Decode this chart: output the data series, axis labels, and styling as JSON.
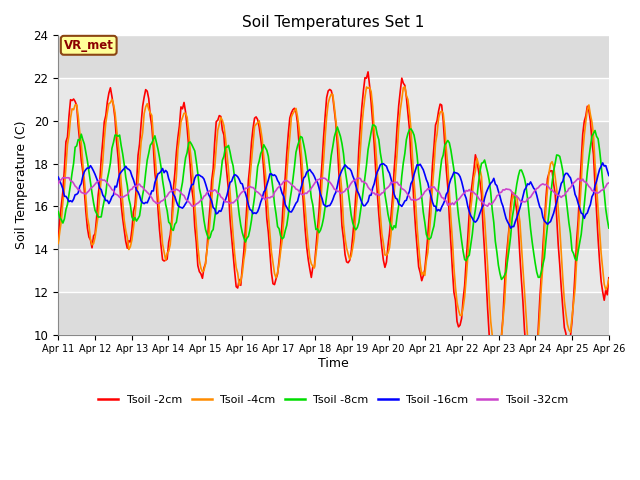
{
  "title": "Soil Temperatures Set 1",
  "xlabel": "Time",
  "ylabel": "Soil Temperature (C)",
  "ylim": [
    10,
    24
  ],
  "yticks": [
    10,
    12,
    14,
    16,
    18,
    20,
    22,
    24
  ],
  "xlim": [
    0,
    15
  ],
  "fig_bg_color": "#ffffff",
  "plot_bg_color": "#e8e8e8",
  "grid_color": "#ffffff",
  "annotation_text": "VR_met",
  "annotation_box_color": "#ffff99",
  "annotation_border_color": "#8b4513",
  "x_tick_labels": [
    "Apr 11",
    "Apr 12",
    "Apr 13",
    "Apr 14",
    "Apr 15",
    "Apr 16",
    "Apr 17",
    "Apr 18",
    "Apr 19",
    "Apr 20",
    "Apr 21",
    "Apr 22",
    "Apr 23",
    "Apr 24",
    "Apr 25",
    "Apr 26"
  ],
  "legend_labels": [
    "Tsoil -2cm",
    "Tsoil -4cm",
    "Tsoil -8cm",
    "Tsoil -16cm",
    "Tsoil -32cm"
  ],
  "line_colors": [
    "#ff0000",
    "#ff8c00",
    "#00dd00",
    "#0000ff",
    "#cc44cc"
  ],
  "line_widths": [
    1.2,
    1.2,
    1.2,
    1.2,
    1.2
  ],
  "band_colors": [
    "#dcdcdc",
    "#e8e8e8"
  ]
}
